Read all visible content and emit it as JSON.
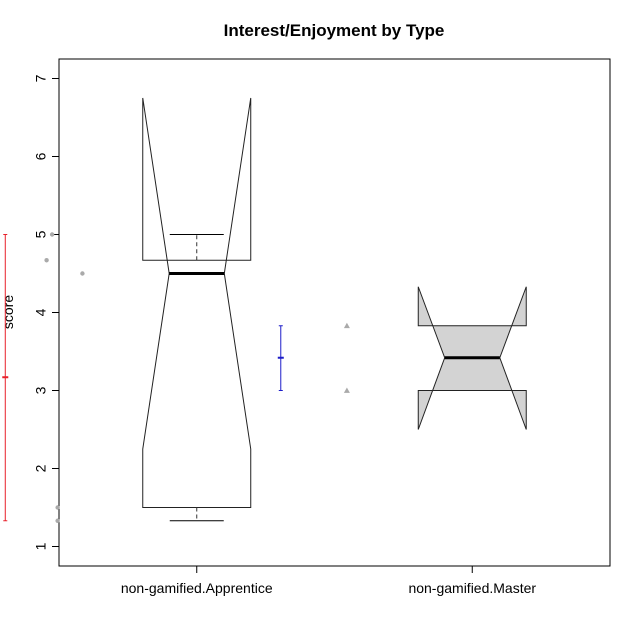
{
  "chart_data": {
    "type": "boxplot",
    "title": "Interest/Enjoyment by Type",
    "xlabel": "",
    "ylabel": "score",
    "ylim": [
      0.75,
      7.25
    ],
    "yticks": [
      1,
      2,
      3,
      4,
      5,
      6,
      7
    ],
    "categories": [
      "non-gamified.Apprentice",
      "non-gamified.Master"
    ],
    "boxes": [
      {
        "category": "non-gamified.Apprentice",
        "whisker_low": 1.33,
        "q1": 1.5,
        "median": 4.5,
        "q3": 4.67,
        "whisker_high": 5.0,
        "notch_low": 2.25,
        "notch_high": 6.75,
        "fill": "#ffffff",
        "points": [
          4.67,
          5.0,
          1.5,
          1.33,
          4.5
        ],
        "point_marker": "circle",
        "mean": 3.17,
        "interval_low": 1.33,
        "interval_high": 5.0,
        "interval_color": "#e8202a"
      },
      {
        "category": "non-gamified.Master",
        "whisker_low": 3.0,
        "q1": 3.0,
        "median": 3.42,
        "q3": 3.83,
        "whisker_high": 3.83,
        "notch_low": 2.5,
        "notch_high": 4.33,
        "fill": "#d3d3d3",
        "points": [
          3.83,
          3.0
        ],
        "point_marker": "triangle",
        "mean": 3.42,
        "interval_low": 3.0,
        "interval_high": 3.83,
        "interval_color": "#1c1cc8"
      }
    ],
    "grid": false,
    "legend": "none"
  }
}
